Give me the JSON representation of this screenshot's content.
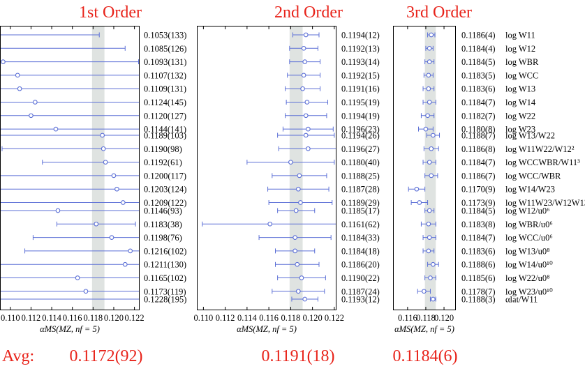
{
  "colors": {
    "title": "#e8231a",
    "marker": "#5b6fd6",
    "band": "#dfe3e1"
  },
  "avg_label": "Avg:",
  "chart_data": [
    {
      "type": "scatter",
      "title": "1st Order",
      "xlabel": "αMS(MZ, nf = 5)",
      "xlim": [
        0.109,
        0.1225
      ],
      "xticks": [
        "0.110",
        "0.112",
        "0.114",
        "0.116",
        "0.118",
        "0.120",
        "0.122"
      ],
      "band": [
        0.1179,
        0.1191
      ],
      "avg": "0.1172(92)",
      "rows": [
        {
          "value": 0.1053,
          "err": 0.0133,
          "text": "0.1053(133)"
        },
        {
          "value": 0.1085,
          "err": 0.0126,
          "text": "0.1085(126)"
        },
        {
          "value": 0.1093,
          "err": 0.0131,
          "text": "0.1093(131)"
        },
        {
          "value": 0.1107,
          "err": 0.0132,
          "text": "0.1107(132)"
        },
        {
          "value": 0.1109,
          "err": 0.0131,
          "text": "0.1109(131)"
        },
        {
          "value": 0.1124,
          "err": 0.0145,
          "text": "0.1124(145)"
        },
        {
          "value": 0.112,
          "err": 0.0127,
          "text": "0.1120(127)"
        },
        {
          "value": 0.1144,
          "err": 0.0141,
          "text": "0.1144(141)"
        },
        {
          "value": 0.1189,
          "err": 0.0103,
          "text": "0.1189(103)"
        },
        {
          "value": 0.119,
          "err": 0.0098,
          "text": "0.1190(98)"
        },
        {
          "value": 0.1192,
          "err": 0.0061,
          "text": "0.1192(61)"
        },
        {
          "value": 0.12,
          "err": 0.0117,
          "text": "0.1200(117)"
        },
        {
          "value": 0.1203,
          "err": 0.0124,
          "text": "0.1203(124)"
        },
        {
          "value": 0.1209,
          "err": 0.0122,
          "text": "0.1209(122)"
        },
        {
          "value": 0.1146,
          "err": 0.0093,
          "text": "0.1146(93)"
        },
        {
          "value": 0.1183,
          "err": 0.0038,
          "text": "0.1183(38)"
        },
        {
          "value": 0.1198,
          "err": 0.0076,
          "text": "0.1198(76)"
        },
        {
          "value": 0.1216,
          "err": 0.0102,
          "text": "0.1216(102)"
        },
        {
          "value": 0.1211,
          "err": 0.013,
          "text": "0.1211(130)"
        },
        {
          "value": 0.1165,
          "err": 0.0102,
          "text": "0.1165(102)"
        },
        {
          "value": 0.1173,
          "err": 0.0119,
          "text": "0.1173(119)"
        },
        {
          "value": 0.1228,
          "err": 0.0195,
          "text": "0.1228(195)"
        }
      ]
    },
    {
      "type": "scatter",
      "title": "2nd Order",
      "xlabel": "αMS(MZ, nf = 5)",
      "xlim": [
        0.1094,
        0.1222
      ],
      "xticks": [
        "0.110",
        "0.112",
        "0.114",
        "0.116",
        "0.118",
        "0.120",
        "0.122"
      ],
      "band": [
        0.1179,
        0.1191
      ],
      "avg": "0.1191(18)",
      "rows": [
        {
          "value": 0.1194,
          "err": 0.0012,
          "text": "0.1194(12)"
        },
        {
          "value": 0.1192,
          "err": 0.0013,
          "text": "0.1192(13)"
        },
        {
          "value": 0.1193,
          "err": 0.0014,
          "text": "0.1193(14)"
        },
        {
          "value": 0.1192,
          "err": 0.0015,
          "text": "0.1192(15)"
        },
        {
          "value": 0.1191,
          "err": 0.0016,
          "text": "0.1191(16)"
        },
        {
          "value": 0.1195,
          "err": 0.0019,
          "text": "0.1195(19)"
        },
        {
          "value": 0.1194,
          "err": 0.0019,
          "text": "0.1194(19)"
        },
        {
          "value": 0.1196,
          "err": 0.0023,
          "text": "0.1196(23)"
        },
        {
          "value": 0.1194,
          "err": 0.0026,
          "text": "0.1194(26)"
        },
        {
          "value": 0.1196,
          "err": 0.0027,
          "text": "0.1196(27)"
        },
        {
          "value": 0.118,
          "err": 0.004,
          "text": "0.1180(40)"
        },
        {
          "value": 0.1188,
          "err": 0.0025,
          "text": "0.1188(25)"
        },
        {
          "value": 0.1187,
          "err": 0.0028,
          "text": "0.1187(28)"
        },
        {
          "value": 0.1189,
          "err": 0.0029,
          "text": "0.1189(29)"
        },
        {
          "value": 0.1185,
          "err": 0.0017,
          "text": "0.1185(17)"
        },
        {
          "value": 0.1161,
          "err": 0.0062,
          "text": "0.1161(62)"
        },
        {
          "value": 0.1184,
          "err": 0.0033,
          "text": "0.1184(33)"
        },
        {
          "value": 0.1184,
          "err": 0.0018,
          "text": "0.1184(18)"
        },
        {
          "value": 0.1186,
          "err": 0.002,
          "text": "0.1186(20)"
        },
        {
          "value": 0.119,
          "err": 0.0022,
          "text": "0.1190(22)"
        },
        {
          "value": 0.1187,
          "err": 0.0024,
          "text": "0.1187(24)"
        },
        {
          "value": 0.1193,
          "err": 0.0012,
          "text": "0.1193(12)"
        }
      ]
    },
    {
      "type": "scatter",
      "title": "3rd Order",
      "xlabel": "αMS(MZ, nf = 5)",
      "xlim": [
        0.1144,
        0.1213
      ],
      "xticks": [
        "0.116",
        "0.118",
        "0.120"
      ],
      "band": [
        0.1179,
        0.1191
      ],
      "avg": "0.1184(6)",
      "rows": [
        {
          "value": 0.1186,
          "err": 0.0004,
          "text": "0.1186(4)"
        },
        {
          "value": 0.1184,
          "err": 0.0004,
          "text": "0.1184(4)"
        },
        {
          "value": 0.1184,
          "err": 0.0005,
          "text": "0.1184(5)"
        },
        {
          "value": 0.1183,
          "err": 0.0005,
          "text": "0.1183(5)"
        },
        {
          "value": 0.1183,
          "err": 0.0006,
          "text": "0.1183(6)"
        },
        {
          "value": 0.1184,
          "err": 0.0007,
          "text": "0.1184(7)"
        },
        {
          "value": 0.1182,
          "err": 0.0007,
          "text": "0.1182(7)"
        },
        {
          "value": 0.118,
          "err": 0.0008,
          "text": "0.1180(8)"
        },
        {
          "value": 0.1188,
          "err": 0.0007,
          "text": "0.1188(7)"
        },
        {
          "value": 0.1186,
          "err": 0.0008,
          "text": "0.1186(8)"
        },
        {
          "value": 0.1184,
          "err": 0.0007,
          "text": "0.1184(7)"
        },
        {
          "value": 0.1186,
          "err": 0.0007,
          "text": "0.1186(7)"
        },
        {
          "value": 0.117,
          "err": 0.0009,
          "text": "0.1170(9)"
        },
        {
          "value": 0.1173,
          "err": 0.0009,
          "text": "0.1173(9)"
        },
        {
          "value": 0.1184,
          "err": 0.0005,
          "text": "0.1184(5)"
        },
        {
          "value": 0.1183,
          "err": 0.0008,
          "text": "0.1183(8)"
        },
        {
          "value": 0.1184,
          "err": 0.0007,
          "text": "0.1184(7)"
        },
        {
          "value": 0.1183,
          "err": 0.0006,
          "text": "0.1183(6)"
        },
        {
          "value": 0.1188,
          "err": 0.0006,
          "text": "0.1188(6)"
        },
        {
          "value": 0.1185,
          "err": 0.0006,
          "text": "0.1185(6)"
        },
        {
          "value": 0.1178,
          "err": 0.0007,
          "text": "0.1178(7)"
        },
        {
          "value": 0.1188,
          "err": 0.0003,
          "text": "0.1188(3)"
        }
      ],
      "labels": [
        "log W11",
        "log W12",
        "log WBR",
        "log WCC",
        "log W13",
        "log W14",
        "log W22",
        "log W23",
        "log W13/W22",
        "log W11W22/W12²",
        "log WCCWBR/W11³",
        "log WCC/WBR",
        "log W14/W23",
        "log W11W23/W12W13",
        "log W12/u0⁶",
        "log WBR/u0⁶",
        "log WCC/u0⁶",
        "log W13/u0⁸",
        "log W14/u0¹⁰",
        "log W22/u0⁸",
        "log W23/u0¹⁰",
        "αlat/W11"
      ]
    }
  ]
}
